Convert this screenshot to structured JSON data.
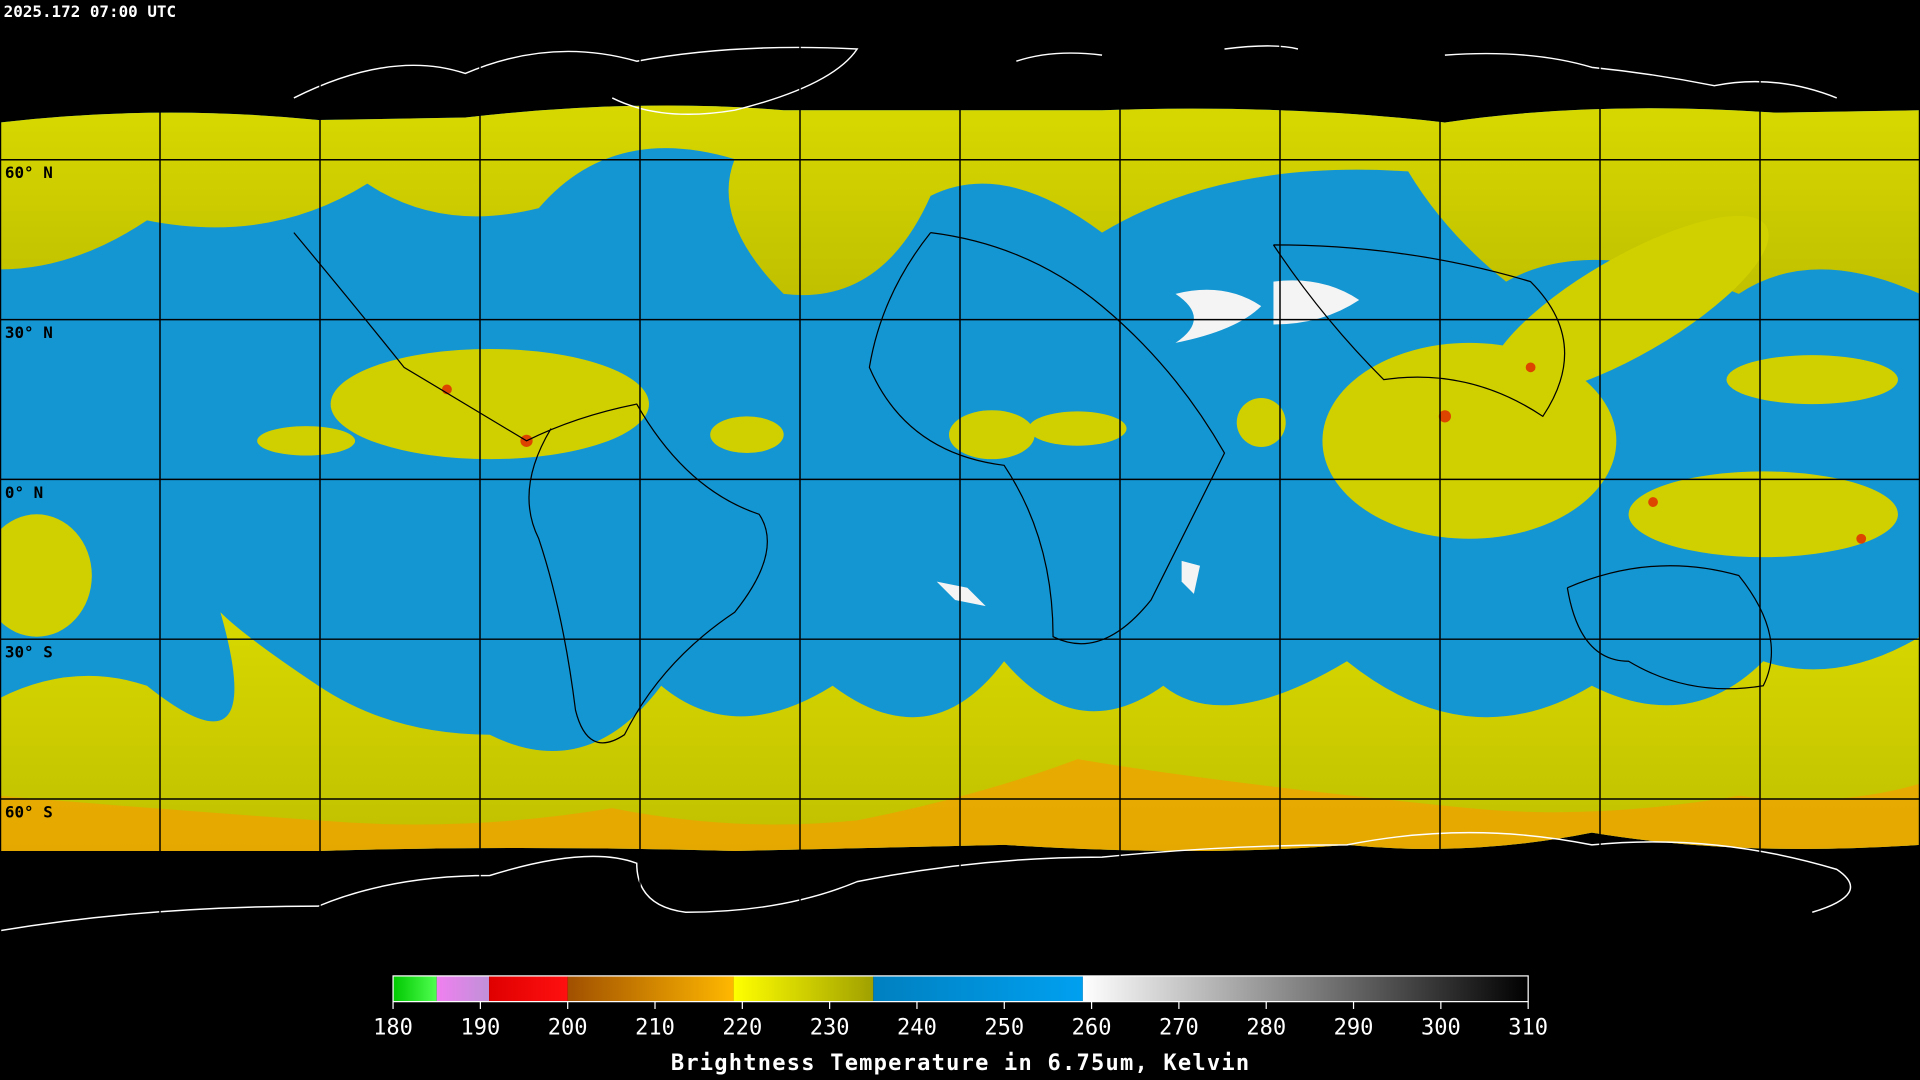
{
  "header": {
    "timestamp": "2025.172 07:00 UTC"
  },
  "map": {
    "latitude_labels": [
      "60° N",
      "30° N",
      "0° N",
      "30° S",
      "60° S"
    ]
  },
  "colorbar": {
    "title": "Brightness Temperature in 6.75um, Kelvin",
    "lim": [
      180,
      310
    ],
    "ticks": [
      180,
      190,
      200,
      210,
      220,
      230,
      240,
      250,
      260,
      270,
      280,
      290,
      300,
      310
    ],
    "segments": [
      {
        "from": 180,
        "to": 185,
        "colors": [
          "#00c800",
          "#50ff50"
        ]
      },
      {
        "from": 185,
        "to": 191,
        "colors": [
          "#f080f0",
          "#c090d8"
        ]
      },
      {
        "from": 191,
        "to": 200,
        "colors": [
          "#e00000",
          "#ff1010"
        ]
      },
      {
        "from": 200,
        "to": 219,
        "colors": [
          "#a05000",
          "#ffb800"
        ]
      },
      {
        "from": 219,
        "to": 235,
        "colors": [
          "#ffff00",
          "#a0a000"
        ]
      },
      {
        "from": 235,
        "to": 259,
        "colors": [
          "#0080c0",
          "#00a0f0"
        ]
      },
      {
        "from": 259,
        "to": 310,
        "colors": [
          "#ffffff",
          "#000000"
        ]
      }
    ]
  }
}
